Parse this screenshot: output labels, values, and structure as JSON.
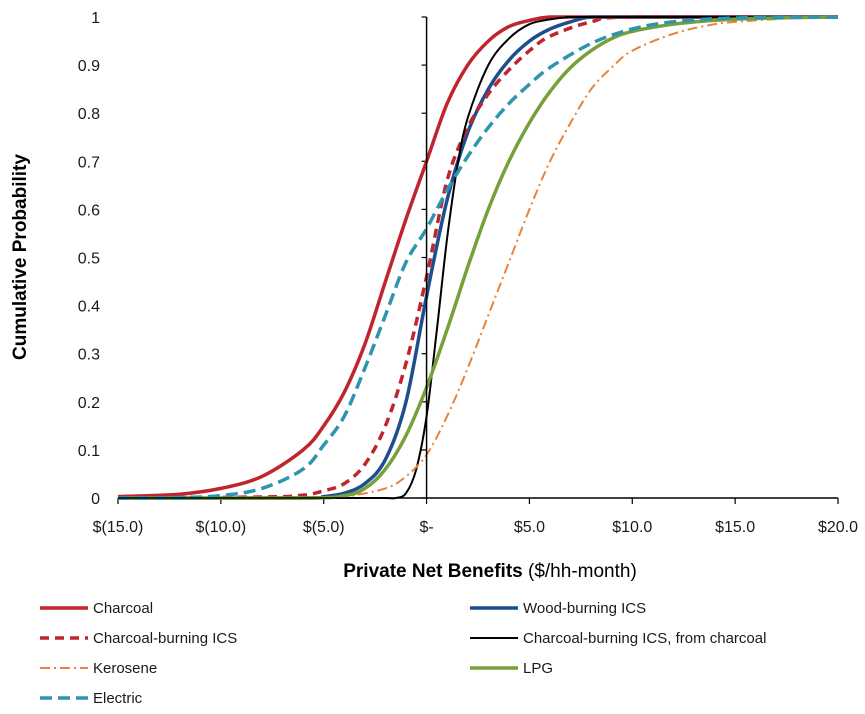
{
  "chart_data": {
    "type": "line",
    "title": "",
    "xlabel_bold": "Private Net Benefits",
    "xlabel_rest": " ($/hh-month)",
    "ylabel": "Cumulative Probability",
    "xlim": [
      -15,
      20
    ],
    "ylim": [
      0,
      1
    ],
    "x_ticks": [
      {
        "value": -15,
        "label": "$(15.0)"
      },
      {
        "value": -10,
        "label": "$(10.0)"
      },
      {
        "value": -5,
        "label": "$(5.0)"
      },
      {
        "value": 0,
        "label": "$-"
      },
      {
        "value": 5,
        "label": "$5.0"
      },
      {
        "value": 10,
        "label": "$10.0"
      },
      {
        "value": 15,
        "label": "$15.0"
      },
      {
        "value": 20,
        "label": "$20.0"
      }
    ],
    "y_ticks": [
      {
        "value": 0,
        "label": "0"
      },
      {
        "value": 0.1,
        "label": "0.1"
      },
      {
        "value": 0.2,
        "label": "0.2"
      },
      {
        "value": 0.3,
        "label": "0.3"
      },
      {
        "value": 0.4,
        "label": "0.4"
      },
      {
        "value": 0.5,
        "label": "0.5"
      },
      {
        "value": 0.6,
        "label": "0.6"
      },
      {
        "value": 0.7,
        "label": "0.7"
      },
      {
        "value": 0.8,
        "label": "0.8"
      },
      {
        "value": 0.9,
        "label": "0.9"
      },
      {
        "value": 1,
        "label": "1"
      }
    ],
    "grid": false,
    "legend_position": "bottom",
    "series": [
      {
        "name": "Charcoal",
        "color": "#c0242c",
        "dash": "solid",
        "width": 3.5,
        "x": [
          -15,
          -12,
          -10,
          -8,
          -6,
          -5,
          -4,
          -3,
          -2,
          -1,
          0,
          1,
          2,
          3,
          4,
          5,
          6,
          8,
          20
        ],
        "y": [
          0.003,
          0.008,
          0.02,
          0.045,
          0.1,
          0.15,
          0.22,
          0.32,
          0.45,
          0.58,
          0.7,
          0.82,
          0.9,
          0.95,
          0.98,
          0.993,
          1.0,
          1.0,
          1.0
        ]
      },
      {
        "name": "Wood-burning ICS",
        "color": "#1f4e8c",
        "dash": "solid",
        "width": 3.5,
        "x": [
          -15,
          -6,
          -5,
          -4,
          -3,
          -2,
          -1,
          0,
          1,
          2,
          3,
          4,
          5,
          6,
          7,
          8,
          10,
          20
        ],
        "y": [
          0,
          0,
          0.003,
          0.01,
          0.03,
          0.08,
          0.2,
          0.42,
          0.62,
          0.76,
          0.85,
          0.91,
          0.95,
          0.975,
          0.99,
          1.0,
          1.0,
          1.0
        ]
      },
      {
        "name": "Charcoal-burning ICS",
        "color": "#c0242c",
        "dash": "9 6",
        "width": 3.5,
        "x": [
          -15,
          -8,
          -6,
          -5,
          -4,
          -3,
          -2,
          -1,
          0,
          1,
          2,
          3,
          4,
          5,
          6,
          8,
          10,
          20
        ],
        "y": [
          0,
          0.002,
          0.006,
          0.015,
          0.03,
          0.07,
          0.15,
          0.28,
          0.46,
          0.66,
          0.77,
          0.84,
          0.89,
          0.93,
          0.96,
          0.99,
          1.0,
          1.0
        ]
      },
      {
        "name": "Charcoal-burning ICS, from charcoal",
        "color": "#000000",
        "dash": "solid",
        "width": 2,
        "x": [
          -15,
          -4,
          -3.5,
          -3,
          -2.5,
          -2,
          -1.5,
          -1,
          -0.5,
          0,
          0.5,
          1,
          1.5,
          2,
          3,
          4,
          5,
          6,
          7,
          8,
          20
        ],
        "y": [
          0,
          0,
          0,
          0,
          0,
          0,
          0,
          0.01,
          0.06,
          0.17,
          0.35,
          0.54,
          0.69,
          0.79,
          0.9,
          0.955,
          0.985,
          0.995,
          1.0,
          1.0,
          1.0
        ]
      },
      {
        "name": "Kerosene",
        "color": "#e8833a",
        "dash": "10 4 2 4",
        "width": 2,
        "x": [
          -15,
          -6,
          -4,
          -2,
          -1,
          0,
          1,
          2,
          3,
          4,
          5,
          6,
          7,
          8,
          9,
          10,
          12,
          14,
          16,
          18,
          20
        ],
        "y": [
          0,
          0,
          0.003,
          0.02,
          0.045,
          0.09,
          0.17,
          0.27,
          0.38,
          0.49,
          0.6,
          0.7,
          0.78,
          0.85,
          0.895,
          0.93,
          0.965,
          0.985,
          0.993,
          0.998,
          1.0
        ]
      },
      {
        "name": "LPG",
        "color": "#76a03a",
        "dash": "solid",
        "width": 3.5,
        "x": [
          -15,
          -6,
          -4,
          -3,
          -2,
          -1,
          0,
          1,
          2,
          3,
          4,
          5,
          6,
          7,
          8,
          9,
          10,
          12,
          14,
          16,
          20
        ],
        "y": [
          0,
          0,
          0.005,
          0.02,
          0.06,
          0.13,
          0.23,
          0.35,
          0.48,
          0.6,
          0.7,
          0.78,
          0.845,
          0.895,
          0.93,
          0.955,
          0.97,
          0.985,
          0.993,
          0.997,
          1.0
        ]
      },
      {
        "name": "Electric",
        "color": "#2e94b0",
        "dash": "12 6",
        "width": 3.5,
        "x": [
          -15,
          -12,
          -10,
          -8,
          -6,
          -5,
          -4,
          -3,
          -2,
          -1,
          0,
          1,
          2,
          3,
          4,
          5,
          6,
          8,
          10,
          12,
          15,
          20
        ],
        "y": [
          0,
          0.001,
          0.005,
          0.02,
          0.06,
          0.11,
          0.17,
          0.27,
          0.38,
          0.49,
          0.56,
          0.64,
          0.71,
          0.77,
          0.82,
          0.86,
          0.895,
          0.945,
          0.975,
          0.99,
          0.998,
          1.0
        ]
      }
    ]
  }
}
